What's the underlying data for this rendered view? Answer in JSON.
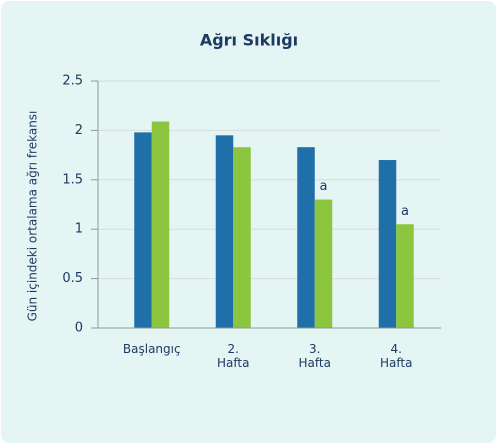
{
  "chart_data": {
    "type": "bar",
    "title": "Ağrı Sıklığı",
    "y_label": "Gün içindeki ortalama ağrı frekansı",
    "categories": [
      "Başlangıç",
      "2.\nHafta",
      "3.\nHafta",
      "4.\nHafta"
    ],
    "series": [
      {
        "color": "#1f6fa8",
        "values": [
          1.98,
          1.95,
          1.83,
          1.7
        ]
      },
      {
        "color": "#8cc63f",
        "values": [
          2.09,
          1.83,
          1.3,
          1.05
        ],
        "notes": [
          null,
          null,
          "a",
          "a"
        ]
      }
    ],
    "ylim": [
      0,
      2.5
    ],
    "yticks": [
      0,
      0.5,
      1,
      1.5,
      2,
      2.5
    ],
    "grid": true
  }
}
